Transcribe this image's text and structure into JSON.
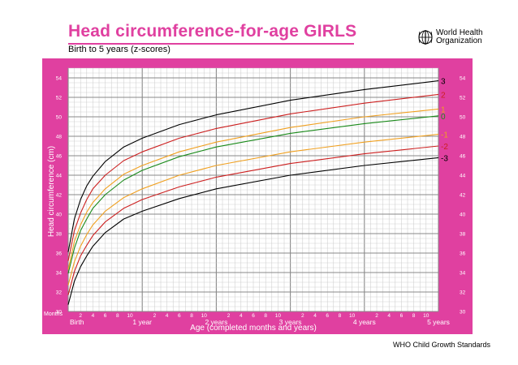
{
  "header": {
    "title": "Head circumference-for-age  GIRLS",
    "subtitle": "Birth to 5 years (z-scores)",
    "org_line1": "World Health",
    "org_line2": "Organization",
    "logo_icon": "who-emblem-icon"
  },
  "footer": {
    "text": "WHO Child Growth Standards"
  },
  "colors": {
    "frame": "#e040a0",
    "grid_minor": "#c8c8c8",
    "grid_major": "#888888",
    "z3": "#000000",
    "z2": "#cc1f1f",
    "z1": "#f0a020",
    "z0": "#1a8a1a"
  },
  "chart_data": {
    "type": "line",
    "title": "Head circumference-for-age  GIRLS",
    "subtitle": "Birth to 5 years (z-scores)",
    "xlabel": "Age (completed months and years)",
    "ylabel": "Head circumference (cm)",
    "x_unit_label": "Months",
    "xlim": [
      0,
      60
    ],
    "ylim": [
      30,
      55
    ],
    "grid": true,
    "y_ticks": [
      30,
      32,
      34,
      36,
      38,
      40,
      42,
      44,
      46,
      48,
      50,
      52,
      54
    ],
    "x_month_tick_labels": [
      "2",
      "4",
      "6",
      "8",
      "10"
    ],
    "x_year_labels": [
      "Birth",
      "1 year",
      "2 years",
      "3 years",
      "4 years",
      "5 years"
    ],
    "legend_placement": "right end of lines",
    "x": [
      0,
      1,
      2,
      3,
      4,
      6,
      9,
      12,
      18,
      24,
      36,
      48,
      60
    ],
    "series": [
      {
        "name": "3",
        "values": [
          36.1,
          39.5,
          41.5,
          42.9,
          43.9,
          45.4,
          46.9,
          47.8,
          49.2,
          50.2,
          51.7,
          52.8,
          53.7
        ]
      },
      {
        "name": "2",
        "values": [
          35.2,
          38.3,
          40.1,
          41.5,
          42.6,
          44.0,
          45.5,
          46.4,
          47.8,
          48.8,
          50.3,
          51.4,
          52.3
        ]
      },
      {
        "name": "1",
        "values": [
          34.3,
          37.2,
          38.9,
          40.2,
          41.2,
          42.6,
          44.1,
          45.0,
          46.4,
          47.4,
          48.9,
          50.0,
          50.8
        ]
      },
      {
        "name": "0",
        "values": [
          33.9,
          36.5,
          38.3,
          39.5,
          40.6,
          42.0,
          43.5,
          44.5,
          45.9,
          46.9,
          48.3,
          49.3,
          50.1
        ]
      },
      {
        "name": "-1",
        "values": [
          32.7,
          35.1,
          36.7,
          37.9,
          38.9,
          40.3,
          41.7,
          42.6,
          44.0,
          45.0,
          46.4,
          47.4,
          48.2
        ]
      },
      {
        "name": "-2",
        "values": [
          31.7,
          34.1,
          35.7,
          36.8,
          37.8,
          39.2,
          40.6,
          41.5,
          42.8,
          43.8,
          45.2,
          46.2,
          47.0
        ]
      },
      {
        "name": "-3",
        "values": [
          30.7,
          33.1,
          34.6,
          35.7,
          36.7,
          38.1,
          39.5,
          40.3,
          41.6,
          42.6,
          44.0,
          45.0,
          45.8
        ]
      }
    ]
  }
}
